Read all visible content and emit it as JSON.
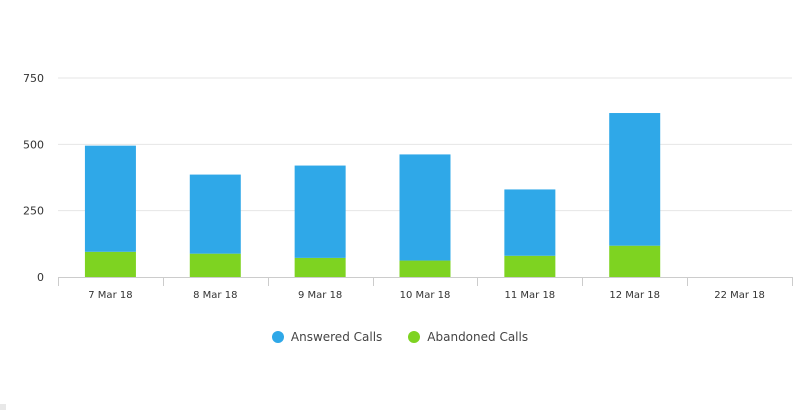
{
  "chart_data": {
    "type": "bar",
    "stacked": true,
    "categories": [
      "7 Mar 18",
      "8 Mar 18",
      "9 Mar 18",
      "10 Mar 18",
      "11 Mar 18",
      "12 Mar 18",
      "22 Mar 18"
    ],
    "series": [
      {
        "name": "Abandoned Calls",
        "color": "#7ed321",
        "values": [
          95,
          88,
          72,
          62,
          80,
          118,
          0
        ]
      },
      {
        "name": "Answered Calls",
        "color": "#2fa8e8",
        "values": [
          400,
          298,
          348,
          400,
          250,
          500,
          0
        ]
      }
    ],
    "yticks": [
      0,
      250,
      500,
      750
    ],
    "ylim": [
      0,
      750
    ],
    "grid": true,
    "legend_position": "bottom-center"
  },
  "legend": [
    {
      "label": "Answered Calls",
      "color": "#2fa8e8"
    },
    {
      "label": "Abandoned Calls",
      "color": "#7ed321"
    }
  ]
}
